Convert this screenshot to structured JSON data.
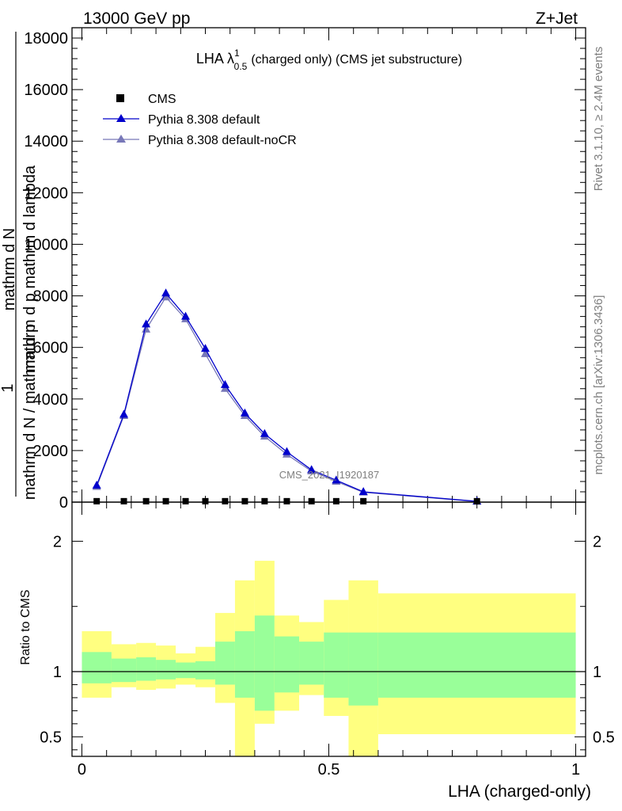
{
  "header": {
    "left": "13000 GeV pp",
    "right": "Z+Jet"
  },
  "colors": {
    "cms": "#000000",
    "pythia_default": "#0000cc",
    "pythia_nocr": "#7878b8",
    "band_inner": "#99ff99",
    "band_outer": "#ffff80"
  },
  "chart_data": [
    {
      "type": "line",
      "title": {
        "prefix": "LHA λ",
        "sup": "1",
        "sub": "0.5",
        "suffix": "(charged only) (CMS jet substructure)"
      },
      "ylabel_denominator": "mathrm d N / mathrm d p",
      "ylabel_numerator_glitch": "mathrm d N",
      "ylabel_top": "1",
      "ylabel_extra": "mathrm d p mathrm d lambda",
      "ylim": [
        0,
        18400
      ],
      "yticks": [
        "0",
        "2000",
        "4000",
        "6000",
        "8000",
        "10000",
        "12000",
        "14000",
        "16000",
        "18000"
      ],
      "yticks_values": [
        0,
        2000,
        4000,
        6000,
        8000,
        10000,
        12000,
        14000,
        16000,
        18000
      ],
      "xlim": [
        -0.02,
        1.02
      ],
      "legend_position": "top-left",
      "watermark": "CMS_2021_I1920187",
      "series": [
        {
          "name": "CMS",
          "marker": "square",
          "x": [
            0.03,
            0.085,
            0.13,
            0.17,
            0.21,
            0.25,
            0.29,
            0.33,
            0.37,
            0.415,
            0.465,
            0.515,
            0.57,
            0.8
          ],
          "y": [
            5,
            5,
            5,
            5,
            5,
            5,
            5,
            5,
            5,
            5,
            5,
            5,
            5,
            5
          ]
        },
        {
          "name": "Pythia 8.308 default",
          "marker": "triangle",
          "x": [
            0.03,
            0.085,
            0.13,
            0.17,
            0.21,
            0.25,
            0.29,
            0.33,
            0.37,
            0.415,
            0.465,
            0.515,
            0.57,
            0.8
          ],
          "y": [
            650,
            3400,
            6900,
            8100,
            7200,
            5950,
            4550,
            3450,
            2650,
            1950,
            1250,
            850,
            400,
            30
          ]
        },
        {
          "name": "Pythia 8.308 default-noCR",
          "marker": "triangle",
          "x": [
            0.03,
            0.085,
            0.13,
            0.17,
            0.21,
            0.25,
            0.29,
            0.33,
            0.37,
            0.415,
            0.465,
            0.515,
            0.57,
            0.8
          ],
          "y": [
            600,
            3350,
            6700,
            7950,
            7100,
            5750,
            4400,
            3350,
            2550,
            1850,
            1200,
            800,
            380,
            25
          ]
        }
      ]
    },
    {
      "type": "area",
      "ylabel": "Ratio to CMS",
      "xlabel": "LHA (charged-only)",
      "ylim": [
        0.35,
        2.3
      ],
      "yticks": [
        "0.5",
        "1",
        "2"
      ],
      "yticks_values": [
        0.5,
        1,
        2
      ],
      "xticks": [
        "0",
        "0.5",
        "1"
      ],
      "xticks_values": [
        0,
        0.5,
        1
      ],
      "reference_line": 1,
      "bands": {
        "edges": [
          0.0,
          0.06,
          0.11,
          0.15,
          0.19,
          0.23,
          0.27,
          0.31,
          0.35,
          0.39,
          0.44,
          0.49,
          0.54,
          0.6,
          1.0
        ],
        "inner_low": [
          0.91,
          0.92,
          0.93,
          0.94,
          0.95,
          0.94,
          0.9,
          0.8,
          0.7,
          0.84,
          0.9,
          0.8,
          0.74,
          0.8
        ],
        "inner_high": [
          1.15,
          1.1,
          1.11,
          1.09,
          1.07,
          1.08,
          1.23,
          1.31,
          1.43,
          1.27,
          1.23,
          1.3,
          1.3,
          1.3
        ],
        "outer_low": [
          0.8,
          0.88,
          0.86,
          0.87,
          0.9,
          0.88,
          0.76,
          0.3,
          0.6,
          0.7,
          0.82,
          0.66,
          0.3,
          0.52
        ],
        "outer_high": [
          1.31,
          1.21,
          1.22,
          1.2,
          1.14,
          1.19,
          1.45,
          1.7,
          1.85,
          1.43,
          1.38,
          1.55,
          1.7,
          1.6
        ]
      }
    }
  ],
  "side_labels": {
    "rivet": "Rivet 3.1.10, ≥ 2.4M events",
    "mcplots": "mcplots.cern.ch [arXiv:1306.3436]"
  }
}
